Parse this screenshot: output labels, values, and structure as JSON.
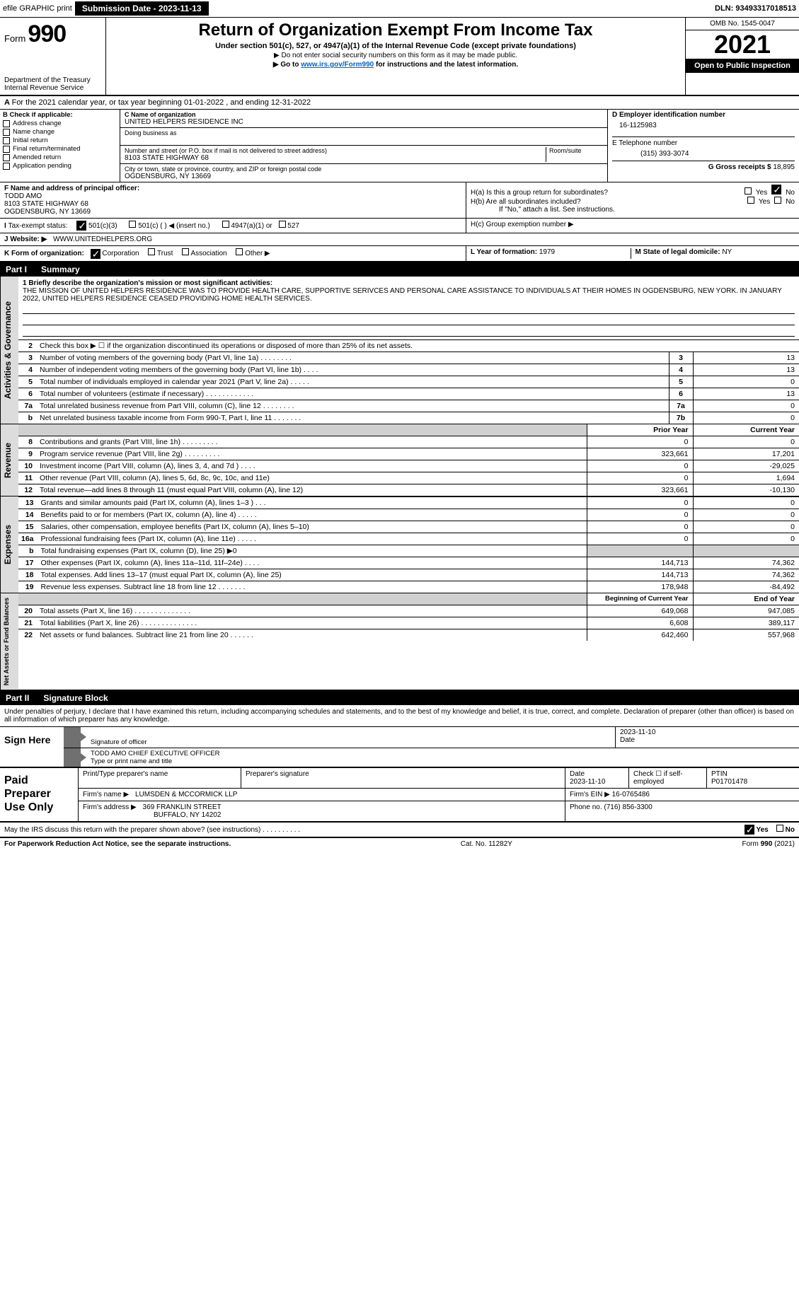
{
  "topbar": {
    "efile": "efile GRAPHIC print",
    "submission": "Submission Date - 2023-11-13",
    "dln": "DLN: 93493317018513"
  },
  "header": {
    "form_word": "Form",
    "form_no": "990",
    "title": "Return of Organization Exempt From Income Tax",
    "subtitle": "Under section 501(c), 527, or 4947(a)(1) of the Internal Revenue Code (except private foundations)",
    "line1": "▶ Do not enter social security numbers on this form as it may be made public.",
    "line2_pre": "▶ Go to ",
    "line2_link": "www.irs.gov/Form990",
    "line2_post": " for instructions and the latest information.",
    "omb": "OMB No. 1545-0047",
    "year": "2021",
    "open": "Open to Public Inspection",
    "dept": "Department of the Treasury",
    "irs": "Internal Revenue Service"
  },
  "a_line": "For the 2021 calendar year, or tax year beginning 01-01-2022    , and ending 12-31-2022",
  "b": {
    "hdr": "B Check if applicable:",
    "items": [
      "Address change",
      "Name change",
      "Initial return",
      "Final return/terminated",
      "Amended return",
      "Application pending"
    ]
  },
  "c": {
    "name_lbl": "C Name of organization",
    "name": "UNITED HELPERS RESIDENCE INC",
    "dba_lbl": "Doing business as",
    "street_lbl": "Number and street (or P.O. box if mail is not delivered to street address)",
    "room_lbl": "Room/suite",
    "street": "8103 STATE HIGHWAY 68",
    "city_lbl": "City or town, state or province, country, and ZIP or foreign postal code",
    "city": "OGDENSBURG, NY 13669"
  },
  "d": {
    "lbl": "D Employer identification number",
    "val": "16-1125983"
  },
  "e": {
    "lbl": "E Telephone number",
    "val": "(315) 393-3074"
  },
  "g": {
    "lbl": "G Gross receipts $",
    "val": "18,895"
  },
  "f": {
    "lbl": "F  Name and address of principal officer:",
    "name": "TODD AMO",
    "addr1": "8103 STATE HIGHWAY 68",
    "addr2": "OGDENSBURG, NY  13669"
  },
  "h": {
    "a": "H(a)  Is this a group return for subordinates?",
    "b": "H(b)  Are all subordinates included?",
    "b_note": "If \"No,\" attach a list. See instructions.",
    "c": "H(c)  Group exemption number ▶",
    "yes": "Yes",
    "no": "No"
  },
  "i": {
    "lbl": "Tax-exempt status:",
    "o1": "501(c)(3)",
    "o2": "501(c) (  ) ◀ (insert no.)",
    "o3": "4947(a)(1) or",
    "o4": "527"
  },
  "j": {
    "lbl": "Website: ▶",
    "val": "WWW.UNITEDHELPERS.ORG"
  },
  "k": {
    "lbl": "K Form of organization:",
    "o1": "Corporation",
    "o2": "Trust",
    "o3": "Association",
    "o4": "Other ▶"
  },
  "l": {
    "lbl": "L Year of formation:",
    "val": "1979"
  },
  "m": {
    "lbl": "M State of legal domicile:",
    "val": "NY"
  },
  "part1": {
    "num": "Part I",
    "title": "Summary"
  },
  "mission": {
    "lbl": "1  Briefly describe the organization's mission or most significant activities:",
    "text": "THE MISSION OF UNITED HELPERS RESIDENCE WAS TO PROVIDE HEALTH CARE, SUPPORTIVE SERIVCES AND PERSONAL CARE ASSISTANCE TO INDIVIDUALS AT THEIR HOMES IN OGDENSBURG, NEW YORK. IN JANUARY 2022, UNITED HELPERS RESIDENCE CEASED PROVIDING HOME HEALTH SERVICES."
  },
  "gov_rows": [
    {
      "n": "2",
      "t": "Check this box ▶ ☐  if the organization discontinued its operations or disposed of more than 25% of its net assets.",
      "box": "",
      "v": ""
    },
    {
      "n": "3",
      "t": "Number of voting members of the governing body (Part VI, line 1a)   .    .    .    .    .    .    .    .",
      "box": "3",
      "v": "13"
    },
    {
      "n": "4",
      "t": "Number of independent voting members of the governing body (Part VI, line 1b)   .    .    .    .",
      "box": "4",
      "v": "13"
    },
    {
      "n": "5",
      "t": "Total number of individuals employed in calendar year 2021 (Part V, line 2a)   .    .    .    .    .",
      "box": "5",
      "v": "0"
    },
    {
      "n": "6",
      "t": "Total number of volunteers (estimate if necessary)   .    .    .    .    .    .    .    .    .    .    .    .",
      "box": "6",
      "v": "13"
    },
    {
      "n": "7a",
      "t": "Total unrelated business revenue from Part VIII, column (C), line 12   .    .    .    .    .    .    .    .",
      "box": "7a",
      "v": "0"
    },
    {
      "n": "b",
      "t": "Net unrelated business taxable income from Form 990-T, Part I, line 11   .    .    .    .    .    .    .",
      "box": "7b",
      "v": "0"
    }
  ],
  "pycy": {
    "py": "Prior Year",
    "cy": "Current Year"
  },
  "rev_rows": [
    {
      "n": "8",
      "t": "Contributions and grants (Part VIII, line 1h)   .    .    .    .    .    .    .    .    .",
      "py": "0",
      "cy": "0"
    },
    {
      "n": "9",
      "t": "Program service revenue (Part VIII, line 2g)   .    .    .    .    .    .    .    .    .",
      "py": "323,661",
      "cy": "17,201"
    },
    {
      "n": "10",
      "t": "Investment income (Part VIII, column (A), lines 3, 4, and 7d )   .    .    .    .",
      "py": "0",
      "cy": "-29,025"
    },
    {
      "n": "11",
      "t": "Other revenue (Part VIII, column (A), lines 5, 6d, 8c, 9c, 10c, and 11e)",
      "py": "0",
      "cy": "1,694"
    },
    {
      "n": "12",
      "t": "Total revenue—add lines 8 through 11 (must equal Part VIII, column (A), line 12)",
      "py": "323,661",
      "cy": "-10,130"
    }
  ],
  "exp_rows": [
    {
      "n": "13",
      "t": "Grants and similar amounts paid (Part IX, column (A), lines 1–3 )   .    .    .",
      "py": "0",
      "cy": "0"
    },
    {
      "n": "14",
      "t": "Benefits paid to or for members (Part IX, column (A), line 4)   .    .    .    .    .",
      "py": "0",
      "cy": "0"
    },
    {
      "n": "15",
      "t": "Salaries, other compensation, employee benefits (Part IX, column (A), lines 5–10)",
      "py": "0",
      "cy": "0"
    },
    {
      "n": "16a",
      "t": "Professional fundraising fees (Part IX, column (A), line 11e)   .    .    .    .    .",
      "py": "0",
      "cy": "0"
    },
    {
      "n": "b",
      "t": "Total fundraising expenses (Part IX, column (D), line 25) ▶0",
      "py": "",
      "cy": "",
      "shade": true
    },
    {
      "n": "17",
      "t": "Other expenses (Part IX, column (A), lines 11a–11d, 11f–24e)   .    .    .    .",
      "py": "144,713",
      "cy": "74,362"
    },
    {
      "n": "18",
      "t": "Total expenses. Add lines 13–17 (must equal Part IX, column (A), line 25)",
      "py": "144,713",
      "cy": "74,362"
    },
    {
      "n": "19",
      "t": "Revenue less expenses. Subtract line 18 from line 12   .    .    .    .    .    .    .",
      "py": "178,948",
      "cy": "-84,492"
    }
  ],
  "na_hdr": {
    "py": "Beginning of Current Year",
    "cy": "End of Year"
  },
  "na_rows": [
    {
      "n": "20",
      "t": "Total assets (Part X, line 16)   .    .    .    .    .    .    .    .    .    .    .    .    .    .",
      "py": "649,068",
      "cy": "947,085"
    },
    {
      "n": "21",
      "t": "Total liabilities (Part X, line 26)   .    .    .    .    .    .    .    .    .    .    .    .    .    .",
      "py": "6,608",
      "cy": "389,117"
    },
    {
      "n": "22",
      "t": "Net assets or fund balances. Subtract line 21 from line 20   .    .    .    .    .    .",
      "py": "642,460",
      "cy": "557,968"
    }
  ],
  "vtabs": {
    "gov": "Activities & Governance",
    "rev": "Revenue",
    "exp": "Expenses",
    "na": "Net Assets or Fund Balances"
  },
  "part2": {
    "num": "Part II",
    "title": "Signature Block"
  },
  "sig": {
    "intro": "Under penalties of perjury, I declare that I have examined this return, including accompanying schedules and statements, and to the best of my knowledge and belief, it is true, correct, and complete. Declaration of preparer (other than officer) is based on all information of which preparer has any knowledge.",
    "sign_here": "Sign Here",
    "sig_officer": "Signature of officer",
    "date": "Date",
    "date_val": "2023-11-10",
    "name": "TODD AMO  CHIEF EXECUTIVE OFFICER",
    "name_lbl": "Type or print name and title"
  },
  "paid": {
    "hdr": "Paid Preparer Use Only",
    "col1": "Print/Type preparer's name",
    "col2": "Preparer's signature",
    "col3": "Date",
    "col3v": "2023-11-10",
    "col4": "Check ☐ if self-employed",
    "col5": "PTIN",
    "col5v": "P01701478",
    "firm_lbl": "Firm's name    ▶",
    "firm": "LUMSDEN & MCCORMICK LLP",
    "ein_lbl": "Firm's EIN ▶",
    "ein": "16-0765486",
    "addr_lbl": "Firm's address ▶",
    "addr1": "369 FRANKLIN STREET",
    "addr2": "BUFFALO, NY  14202",
    "phone_lbl": "Phone no.",
    "phone": "(716) 856-3300"
  },
  "footer": {
    "q": "May the IRS discuss this return with the preparer shown above? (see instructions)   .    .    .    .    .    .    .    .    .    .",
    "yes": "Yes",
    "no": "No",
    "pra": "For Paperwork Reduction Act Notice, see the separate instructions.",
    "cat": "Cat. No. 11282Y",
    "form": "Form 990 (2021)"
  }
}
